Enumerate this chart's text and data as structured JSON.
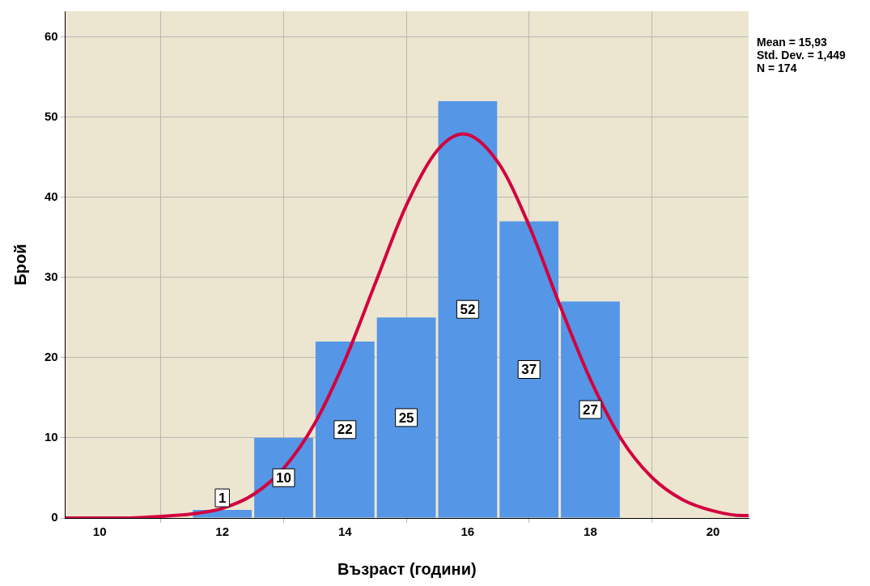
{
  "chart_data": {
    "type": "histogram",
    "xlabel": "Възраст (години)",
    "ylabel": "Брой",
    "annotations": [
      "Mean = 15,93",
      "Std. Dev. = 1,449",
      "N = 174"
    ],
    "xlim": [
      9.44,
      20.58
    ],
    "xticks": [
      10,
      12,
      14,
      16,
      18,
      20
    ],
    "ylim": [
      0,
      63.2
    ],
    "yticks": [
      0,
      10,
      20,
      30,
      40,
      50,
      60
    ],
    "grid": true,
    "series": [
      {
        "color": "#5596e6",
        "bins": [
          11.5,
          12.5,
          13.5,
          14.5,
          15.5,
          16.5,
          17.5,
          18.5
        ],
        "values": [
          1,
          10,
          22,
          25,
          52,
          37,
          27
        ],
        "value_labels": [
          "1",
          "10",
          "22",
          "25",
          "52",
          "37",
          "27"
        ]
      },
      {
        "type": "line",
        "color": "#d3003f",
        "x": [
          9.44,
          10.5,
          11,
          11.5,
          12,
          12.5,
          13,
          13.5,
          14,
          14.5,
          15,
          15.5,
          15.93,
          16.5,
          17,
          17.5,
          18,
          18.5,
          19,
          19.5,
          20,
          20.5,
          20.58
        ],
        "values": [
          0,
          0,
          0.2,
          0.5,
          1.2,
          2.9,
          6.2,
          11.7,
          19.7,
          29.4,
          39,
          45.8,
          47.9,
          44.3,
          36.5,
          26.6,
          17.3,
          9.9,
          5.1,
          2.3,
          0.9,
          0.3,
          0.3
        ]
      }
    ]
  }
}
